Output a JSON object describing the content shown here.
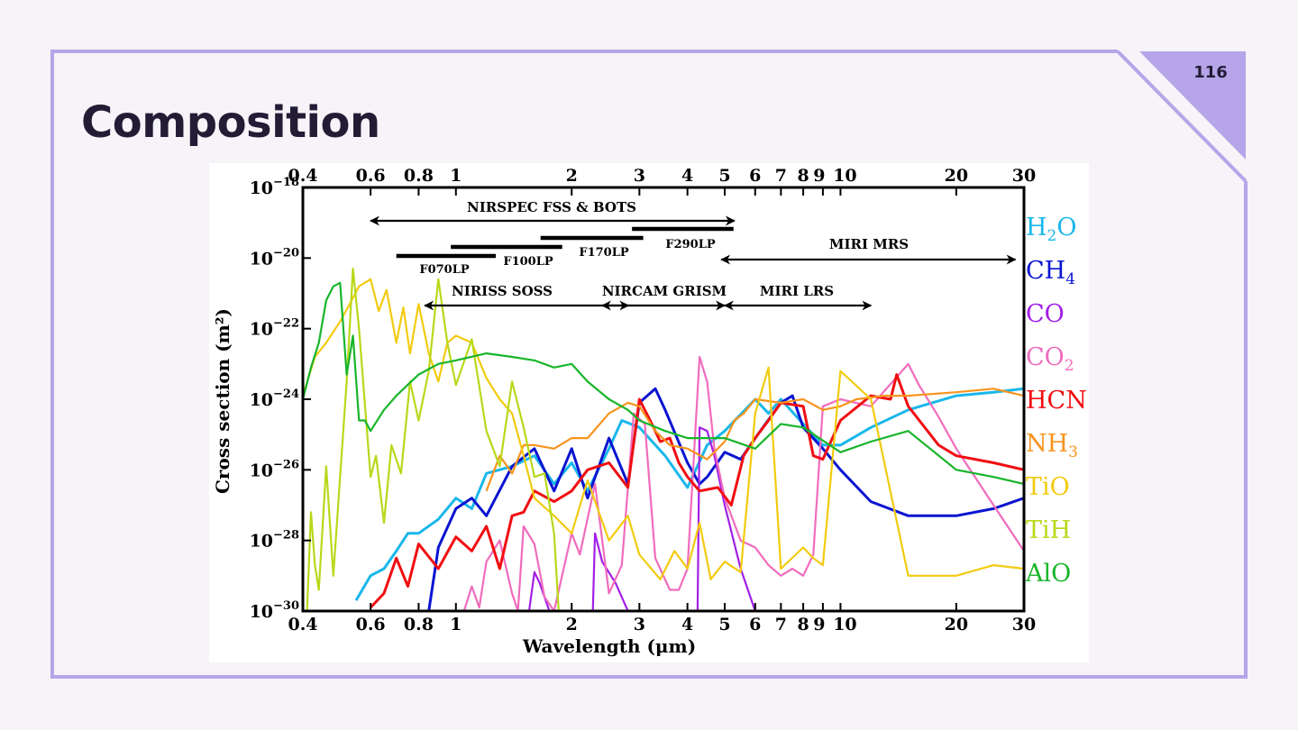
{
  "slide": {
    "title": "Composition",
    "page_number": "116",
    "colors": {
      "accent": "#b6a5e8",
      "background": "#f6f4f8",
      "title": "#221c35"
    }
  },
  "chart_data": {
    "type": "line",
    "title": "",
    "xlabel": "Wavelength (μm)",
    "ylabel": "Cross section (m²)",
    "xscale": "log",
    "yscale": "log",
    "xlim": [
      0.4,
      30
    ],
    "ylim": [
      1e-30,
      1e-18
    ],
    "x_ticks": [
      0.4,
      0.6,
      0.8,
      1,
      2,
      3,
      4,
      5,
      6,
      7,
      8,
      9,
      10,
      20,
      30
    ],
    "x_tick_labels": [
      "0.4",
      "0.6",
      "0.8",
      "1",
      "2",
      "3",
      "4",
      "5",
      "6",
      "7",
      "8",
      "9",
      "10",
      "20",
      "30"
    ],
    "x_tick_display": [
      "0.4",
      "0.6",
      "0.8",
      "1",
      "2",
      "3",
      "4",
      "5",
      "6",
      "7",
      "8",
      "9",
      "10",
      "20",
      "30"
    ],
    "y_ticks": [
      -18,
      -20,
      -22,
      -24,
      -26,
      -28,
      -30
    ],
    "y_tick_base": "10",
    "y_tick_exponents": [
      "−18",
      "−20",
      "−22",
      "−24",
      "−26",
      "−28",
      "−30"
    ],
    "grid": false,
    "legend_placement": "right-outside",
    "instrument_ranges": [
      {
        "name": "NIRSPEC FSS & BOTS",
        "range": [
          0.6,
          5.3
        ],
        "type": "arrow",
        "level": -18.9
      },
      {
        "name": "F290LP",
        "range": [
          2.87,
          5.27
        ],
        "type": "bar",
        "level": -19.1
      },
      {
        "name": "F170LP",
        "range": [
          1.66,
          3.07
        ],
        "type": "bar",
        "level": -19.3
      },
      {
        "name": "F100LP",
        "range": [
          0.97,
          1.89
        ],
        "type": "bar",
        "level": -19.5
      },
      {
        "name": "F070LP",
        "range": [
          0.7,
          1.27
        ],
        "type": "bar",
        "level": -19.7
      },
      {
        "name": "MIRI MRS",
        "range": [
          4.9,
          28.5
        ],
        "type": "arrow",
        "level": -19.95
      },
      {
        "name": "NIRISS SOSS",
        "range": [
          0.83,
          2.81
        ],
        "type": "arrow",
        "level": -21.3
      },
      {
        "name": "NIRCAM GRISM",
        "range": [
          2.4,
          5.0
        ],
        "type": "arrow",
        "level": -21.3
      },
      {
        "name": "MIRI LRS",
        "range": [
          5.0,
          12.0
        ],
        "type": "arrow",
        "level": -21.3
      }
    ],
    "series": [
      {
        "name": "H₂O",
        "label_main": "H",
        "label_sub": "2",
        "label_tail": "O",
        "color": "#1ab7ea",
        "x": [
          0.55,
          0.6,
          0.65,
          0.7,
          0.75,
          0.8,
          0.9,
          1.0,
          1.1,
          1.2,
          1.4,
          1.6,
          1.8,
          2.0,
          2.2,
          2.5,
          2.7,
          3.0,
          3.5,
          4.0,
          4.5,
          5.0,
          6.0,
          6.5,
          7.0,
          8.0,
          9.0,
          10.0,
          12.0,
          15.0,
          20.0,
          25.0,
          30.0
        ],
        "logy": [
          -29.7,
          -29.0,
          -28.8,
          -28.3,
          -27.8,
          -27.8,
          -27.4,
          -26.8,
          -27.1,
          -26.1,
          -25.9,
          -25.6,
          -26.4,
          -25.8,
          -26.6,
          -25.4,
          -24.6,
          -24.8,
          -25.6,
          -26.5,
          -25.3,
          -24.9,
          -24.0,
          -24.4,
          -24.0,
          -24.7,
          -25.3,
          -25.3,
          -24.8,
          -24.3,
          -23.9,
          -23.8,
          -23.7
        ]
      },
      {
        "name": "CH₄",
        "label_main": "CH",
        "label_sub": "4",
        "label_tail": "",
        "color": "#0a14d0",
        "x": [
          0.85,
          0.9,
          1.0,
          1.1,
          1.2,
          1.4,
          1.6,
          1.8,
          2.0,
          2.2,
          2.5,
          2.8,
          3.0,
          3.3,
          3.5,
          4.0,
          4.3,
          4.5,
          5.0,
          5.5,
          6.0,
          7.0,
          7.5,
          8.0,
          9.0,
          10.0,
          12.0,
          15.0,
          20.0,
          25.0,
          30.0
        ],
        "logy": [
          -30.0,
          -28.2,
          -27.1,
          -26.8,
          -27.3,
          -25.9,
          -25.4,
          -26.6,
          -25.4,
          -26.8,
          -25.1,
          -26.4,
          -24.1,
          -23.7,
          -24.3,
          -25.8,
          -26.4,
          -26.2,
          -25.5,
          -25.7,
          -25.1,
          -24.1,
          -23.9,
          -24.8,
          -25.4,
          -26.0,
          -26.9,
          -27.3,
          -27.3,
          -27.1,
          -26.8
        ]
      },
      {
        "name": "CO",
        "label_main": "CO",
        "label_sub": "",
        "label_tail": "",
        "color": "#a31ee6",
        "x": [
          1.55,
          1.6,
          1.65,
          1.75,
          1.8,
          2.27,
          2.3,
          2.4,
          2.6,
          2.8,
          4.25,
          4.3,
          4.5,
          4.7,
          5.0,
          5.5,
          6.0
        ],
        "logy": [
          -30.0,
          -28.9,
          -29.2,
          -30.0,
          -30.0,
          -30.0,
          -27.8,
          -28.6,
          -29.2,
          -30.0,
          -30.0,
          -24.8,
          -24.9,
          -25.6,
          -27.0,
          -28.8,
          -30.0
        ]
      },
      {
        "name": "CO₂",
        "label_main": "CO",
        "label_sub": "2",
        "label_tail": "",
        "color": "#f06cbd",
        "x": [
          1.05,
          1.1,
          1.15,
          1.2,
          1.3,
          1.4,
          1.45,
          1.5,
          1.6,
          1.7,
          1.8,
          2.0,
          2.1,
          2.3,
          2.5,
          2.7,
          2.9,
          3.1,
          3.3,
          3.6,
          3.8,
          4.0,
          4.3,
          4.5,
          4.7,
          5.0,
          5.5,
          6.0,
          6.5,
          7.0,
          7.5,
          8.0,
          8.5,
          9.0,
          10.0,
          12.0,
          15.0,
          16.0,
          18.0,
          20.0,
          25.0,
          30.0
        ],
        "logy": [
          -30.0,
          -29.3,
          -29.9,
          -28.6,
          -28.0,
          -29.5,
          -30.0,
          -27.6,
          -28.1,
          -29.6,
          -30.0,
          -27.8,
          -28.4,
          -26.4,
          -29.5,
          -28.7,
          -24.4,
          -24.7,
          -28.5,
          -29.4,
          -29.4,
          -28.8,
          -22.8,
          -23.5,
          -25.4,
          -26.8,
          -28.0,
          -28.2,
          -28.7,
          -29.0,
          -28.8,
          -29.0,
          -28.4,
          -24.2,
          -24.0,
          -24.2,
          -23.0,
          -23.6,
          -24.5,
          -25.4,
          -27.0,
          -28.3
        ]
      },
      {
        "name": "HCN",
        "label_main": "HCN",
        "label_sub": "",
        "label_tail": "",
        "color": "#f00e12",
        "x": [
          0.6,
          0.65,
          0.7,
          0.75,
          0.8,
          0.9,
          1.0,
          1.1,
          1.2,
          1.3,
          1.4,
          1.5,
          1.6,
          1.8,
          2.0,
          2.2,
          2.5,
          2.8,
          3.0,
          3.2,
          3.4,
          3.6,
          3.8,
          4.0,
          4.3,
          4.8,
          5.2,
          5.6,
          6.0,
          6.5,
          7.0,
          8.0,
          8.5,
          9.0,
          10.0,
          12.0,
          13.5,
          14.0,
          15.0,
          18.0,
          20.0,
          25.0,
          30.0
        ],
        "logy": [
          -29.9,
          -29.5,
          -28.5,
          -29.3,
          -28.1,
          -28.8,
          -27.9,
          -28.3,
          -27.6,
          -28.8,
          -27.3,
          -27.2,
          -26.6,
          -26.9,
          -26.6,
          -26.0,
          -25.8,
          -26.5,
          -24.0,
          -24.6,
          -25.2,
          -25.1,
          -25.8,
          -26.2,
          -26.6,
          -26.5,
          -27.0,
          -25.6,
          -25.1,
          -24.6,
          -24.1,
          -24.2,
          -25.6,
          -25.7,
          -24.6,
          -23.9,
          -24.0,
          -23.3,
          -24.2,
          -25.3,
          -25.6,
          -25.8,
          -26.0
        ]
      },
      {
        "name": "NH₃",
        "label_main": "NH",
        "label_sub": "3",
        "label_tail": "",
        "color": "#f7941d",
        "x": [
          1.2,
          1.3,
          1.4,
          1.5,
          1.6,
          1.8,
          2.0,
          2.2,
          2.5,
          2.8,
          3.0,
          3.3,
          3.6,
          4.0,
          4.5,
          5.0,
          5.3,
          5.6,
          6.0,
          7.0,
          8.0,
          9.0,
          10.0,
          11.0,
          13.0,
          15.0,
          20.0,
          25.0,
          30.0
        ],
        "logy": [
          -26.6,
          -25.6,
          -26.1,
          -25.3,
          -25.3,
          -25.4,
          -25.1,
          -25.1,
          -24.4,
          -24.1,
          -24.2,
          -24.9,
          -25.3,
          -25.4,
          -25.7,
          -25.2,
          -24.6,
          -24.4,
          -24.0,
          -24.1,
          -24.0,
          -24.3,
          -24.2,
          -24.0,
          -23.9,
          -23.9,
          -23.8,
          -23.7,
          -23.9
        ]
      },
      {
        "name": "TiO",
        "label_main": "TiO",
        "label_sub": "",
        "label_tail": "",
        "color": "#f2cb0f",
        "x": [
          0.4,
          0.43,
          0.46,
          0.5,
          0.53,
          0.56,
          0.6,
          0.63,
          0.66,
          0.7,
          0.73,
          0.76,
          0.8,
          0.85,
          0.9,
          0.95,
          1.0,
          1.1,
          1.2,
          1.3,
          1.4,
          1.5,
          1.6,
          1.8,
          2.0,
          2.2,
          2.5,
          2.8,
          3.0,
          3.4,
          3.7,
          4.0,
          4.3,
          4.6,
          5.0,
          5.5,
          6.0,
          6.5,
          7.0,
          8.0,
          8.5,
          9.0,
          10.0,
          12.0,
          15.0,
          20.0,
          25.0,
          30.0
        ],
        "logy": [
          -23.9,
          -22.8,
          -22.4,
          -21.8,
          -21.3,
          -20.8,
          -20.6,
          -21.5,
          -20.9,
          -22.4,
          -21.4,
          -22.7,
          -21.3,
          -22.7,
          -23.5,
          -22.4,
          -22.2,
          -22.4,
          -23.4,
          -24.0,
          -24.4,
          -25.6,
          -26.8,
          -27.3,
          -27.8,
          -26.3,
          -28.0,
          -27.3,
          -28.4,
          -29.1,
          -28.3,
          -28.8,
          -27.5,
          -29.1,
          -28.6,
          -28.9,
          -24.4,
          -23.1,
          -28.8,
          -28.2,
          -28.5,
          -28.7,
          -23.2,
          -24.0,
          -29.0,
          -29.0,
          -28.7,
          -28.8
        ]
      },
      {
        "name": "TiH",
        "label_main": "TiH",
        "label_sub": "",
        "label_tail": "",
        "color": "#b9d81a",
        "x": [
          0.41,
          0.42,
          0.43,
          0.44,
          0.46,
          0.48,
          0.5,
          0.52,
          0.54,
          0.56,
          0.6,
          0.62,
          0.65,
          0.68,
          0.72,
          0.76,
          0.8,
          0.85,
          0.9,
          0.95,
          1.0,
          1.1,
          1.2,
          1.3,
          1.4,
          1.5,
          1.6,
          1.7,
          1.8,
          1.85
        ],
        "logy": [
          -30.0,
          -27.2,
          -28.7,
          -29.4,
          -25.9,
          -29.0,
          -26.2,
          -23.5,
          -20.3,
          -22.0,
          -26.2,
          -25.6,
          -27.5,
          -25.3,
          -26.1,
          -23.5,
          -24.6,
          -23.2,
          -20.6,
          -22.4,
          -23.6,
          -22.3,
          -24.9,
          -25.9,
          -23.5,
          -24.8,
          -26.2,
          -26.1,
          -27.8,
          -30.0
        ]
      },
      {
        "name": "AlO",
        "label_main": "AlO",
        "label_sub": "",
        "label_tail": "",
        "color": "#18b52a",
        "x": [
          0.4,
          0.42,
          0.44,
          0.46,
          0.48,
          0.5,
          0.52,
          0.54,
          0.56,
          0.58,
          0.6,
          0.65,
          0.7,
          0.8,
          0.9,
          1.0,
          1.2,
          1.4,
          1.6,
          1.8,
          2.0,
          2.2,
          2.5,
          2.8,
          3.0,
          3.5,
          4.0,
          5.0,
          6.0,
          7.0,
          8.0,
          10.0,
          12.0,
          15.0,
          20.0,
          25.0,
          30.0
        ],
        "logy": [
          -24.0,
          -23.1,
          -22.4,
          -21.2,
          -20.8,
          -20.7,
          -23.3,
          -22.2,
          -24.6,
          -24.6,
          -24.9,
          -24.3,
          -23.9,
          -23.3,
          -23.0,
          -22.9,
          -22.7,
          -22.8,
          -22.9,
          -23.1,
          -23.0,
          -23.5,
          -24.0,
          -24.3,
          -24.6,
          -24.9,
          -25.1,
          -25.1,
          -25.4,
          -24.7,
          -24.8,
          -25.5,
          -25.2,
          -24.9,
          -26.0,
          -26.2,
          -26.4
        ]
      }
    ]
  }
}
